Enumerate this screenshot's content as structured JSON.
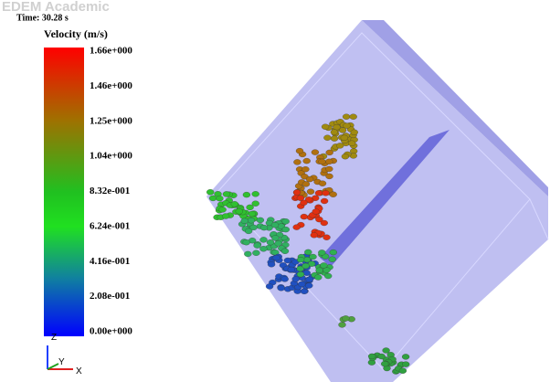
{
  "watermark": "EDEM Academic",
  "time": "Time: 30.28 s",
  "legend": {
    "title": "Velocity (m/s)",
    "labels": [
      "1.66e+000",
      "1.46e+000",
      "1.25e+000",
      "1.04e+000",
      "8.32e-001",
      "6.24e-001",
      "4.16e-001",
      "2.08e-001",
      "0.00e+000"
    ]
  },
  "axes": {
    "z": "Z",
    "y": "Y",
    "x": "X"
  }
}
